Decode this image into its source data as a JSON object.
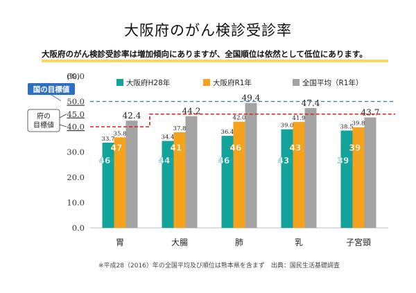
{
  "slide": {
    "title": "大阪府のがん検診受診率",
    "subtitle": "大阪府のがん検診受診率は増加傾向にありますが、全国順位は依然として低位にあります。",
    "footnote": "※平成28（2016）年の全国平均及び順位は熊本県を含まず　出典：国民生活基礎調査"
  },
  "chart_data": {
    "type": "bar",
    "ylabel": "(%)",
    "ylim": [
      0,
      60
    ],
    "yticks": [
      "0.0",
      "10.0",
      "20.0",
      "30.0",
      "40.0",
      "45.0",
      "50.0",
      "60.0"
    ],
    "ytick_values": [
      0,
      10,
      20,
      30,
      40,
      45,
      50,
      60
    ],
    "categories": [
      "胃",
      "大腸",
      "肺",
      "乳",
      "子宮頸"
    ],
    "series": [
      {
        "name": "大阪府H28年",
        "color": "#12a39a",
        "values": [
          33.7,
          34.4,
          36.4,
          39.0,
          38.5
        ],
        "labels": [
          "33.7",
          "34.4",
          "36.4",
          "39.0",
          "38.5"
        ],
        "ranks": [
          "46位",
          "44位",
          "46位",
          "43位",
          "39位"
        ]
      },
      {
        "name": "大阪府R1年",
        "color": "#f5a21c",
        "values": [
          35.8,
          37.8,
          42.0,
          41.9,
          39.8
        ],
        "labels": [
          "35.8",
          "37.8",
          "42.0",
          "41.9",
          "39.8"
        ],
        "ranks": [
          "47位",
          "41位",
          "46位",
          "43位",
          "39位"
        ]
      },
      {
        "name": "全国平均（R1年）",
        "color": "#a3a3a3",
        "values": [
          42.4,
          44.2,
          49.4,
          47.4,
          43.7
        ],
        "labels": [
          "42.4",
          "44.2",
          "49.4",
          "47.4",
          "43.7"
        ]
      }
    ],
    "targets": {
      "national": {
        "label": "国の目標値",
        "value": 50,
        "color": "#2f6fc2"
      },
      "prefecture": {
        "label": "府の\n目標値",
        "values": [
          40,
          45,
          45,
          45,
          45
        ],
        "color": "#d42020"
      }
    },
    "grid": false,
    "legend": "top"
  }
}
